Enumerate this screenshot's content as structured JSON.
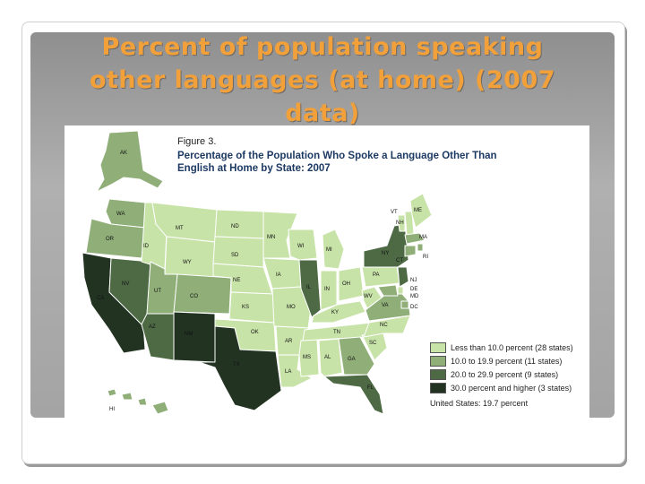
{
  "slide": {
    "title_lines": [
      "Percent of population speaking",
      "other languages (at home) (2007",
      "data)"
    ]
  },
  "figure": {
    "label": "Figure 3.",
    "title_line1": "Percentage of the Population Who Spoke a Language Other Than",
    "title_line2": "English at Home by State: 2007"
  },
  "legend": {
    "items": [
      {
        "label": "Less than 10.0 percent (28 states)",
        "color": "#c8e3a8"
      },
      {
        "label": "10.0 to 19.9 percent (11 states)",
        "color": "#8fae78"
      },
      {
        "label": "20.0 to 29.9 percent (9 states)",
        "color": "#4d6a44"
      },
      {
        "label": "30.0 percent and higher (3 states)",
        "color": "#223322"
      }
    ],
    "total": "United States: 19.7 percent"
  },
  "states": {
    "AK": "AK",
    "WA": "WA",
    "OR": "OR",
    "CA": "CA",
    "NV": "NV",
    "ID": "ID",
    "MT": "MT",
    "WY": "WY",
    "UT": "UT",
    "CO": "CO",
    "AZ": "AZ",
    "NM": "NM",
    "ND": "ND",
    "SD": "SD",
    "NE": "NE",
    "KS": "KS",
    "OK": "OK",
    "TX": "TX",
    "MN": "MN",
    "IA": "IA",
    "MO": "MO",
    "AR": "AR",
    "LA": "LA",
    "WI": "WI",
    "IL": "IL",
    "MS": "MS",
    "MI": "MI",
    "IN": "IN",
    "KY": "KY",
    "TN": "TN",
    "AL": "AL",
    "OH": "OH",
    "GA": "GA",
    "FL": "FL",
    "SC": "SC",
    "NC": "NC",
    "VA": "VA",
    "WV": "WV",
    "PA": "PA",
    "NY": "NY",
    "VT": "VT",
    "NH": "NH",
    "ME": "ME",
    "MA": "MA",
    "RI": "RI",
    "CT": "CT",
    "NJ": "NJ",
    "DE": "DE",
    "MD": "MD",
    "DC": "DC",
    "HI": "HI"
  }
}
